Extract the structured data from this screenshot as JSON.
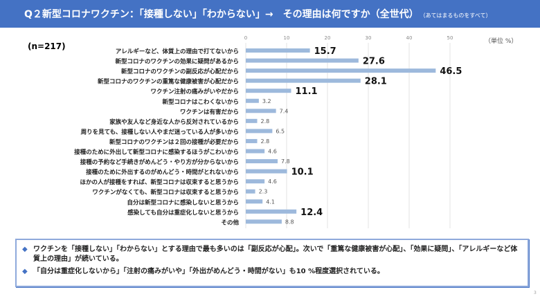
{
  "header": {
    "title": "Q２新型コロナワクチン：「接種しない」「わからない」→　その理由は何ですか（全世代）",
    "subtitle": "（あてはまるものをすべて）"
  },
  "sample": "(n=217)",
  "unit": "（単位 %）",
  "chart_data": {
    "type": "bar",
    "orientation": "horizontal",
    "xlim": [
      0,
      50
    ],
    "xticks": [
      "0",
      "10",
      "20",
      "30",
      "40",
      "50"
    ],
    "grid": true,
    "color": "#9DB9DC",
    "categories": [
      "アレルギーなど、体質上の理由で打てないから",
      "新型コロナのワクチンの効果に疑問があるから",
      "新型コロナのワクチンの副反応が心配だから",
      "新型コロナのワクチンの重篤な健康被害が心配だから",
      "ワクチン注射の痛みがいやだから",
      "新型コロナはこわくないから",
      "ワクチンは有害だから",
      "家族や友人など身近な人から反対されているから",
      "周りを見ても、接種しない人やまだ迷っている人が多いから",
      "新型コロナのワクチンは２回の接種が必要だから",
      "接種のために外出して新型コロナに感染するほうがこわいから",
      "接種の予約など手続きがめんどう・やり方が分からないから",
      "接種のために外出するのがめんどう・時間がとれないから",
      "ほかの人が接種をすれば、新型コロナは収束すると思うから",
      "ワクチンがなくても、新型コロナは収束すると思うから",
      "自分は新型コロナに感染しないと思うから",
      "感染しても自分は重症化しないと思うから",
      "その他"
    ],
    "values": [
      15.7,
      27.6,
      46.5,
      28.1,
      11.1,
      3.2,
      7.4,
      2.8,
      6.5,
      2.8,
      4.6,
      7.8,
      10.1,
      4.6,
      2.3,
      4.1,
      12.4,
      8.8
    ]
  },
  "notes": [
    "ワクチンを「接種しない」「わからない」とする理由で最も多いのは「副反応が心配」。次いで「重篤な健康被害が心配」、「効果に疑問」、「アレルギーなど体質上の理由」が続いている。",
    "「自分は重症化しないから」「注射の痛みがいや」「外出がめんどう・時間がない」も10 %程度選択されている。"
  ],
  "page": "3"
}
